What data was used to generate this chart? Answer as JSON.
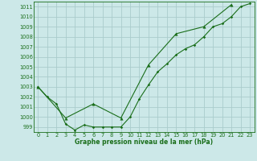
{
  "title": "Graphe pression niveau de la mer (hPa)",
  "bg_color": "#cce8e8",
  "grid_color": "#aacccc",
  "line_color": "#1a6e1a",
  "xlim": [
    -0.5,
    23.5
  ],
  "ylim": [
    998.5,
    1011.5
  ],
  "yticks": [
    999,
    1000,
    1001,
    1002,
    1003,
    1004,
    1005,
    1006,
    1007,
    1008,
    1009,
    1010,
    1011
  ],
  "xticks": [
    0,
    1,
    2,
    3,
    4,
    5,
    6,
    7,
    8,
    9,
    10,
    11,
    12,
    13,
    14,
    15,
    16,
    17,
    18,
    19,
    20,
    21,
    22,
    23
  ],
  "line1_x": [
    0,
    1,
    2,
    3,
    4,
    5,
    6,
    7,
    8,
    9,
    10,
    11,
    12,
    13,
    14,
    15,
    16,
    17,
    18,
    19,
    20,
    21,
    22,
    23
  ],
  "line1_y": [
    1003.0,
    1002.0,
    1001.3,
    999.3,
    998.7,
    999.2,
    999.0,
    999.0,
    999.0,
    999.0,
    1000.0,
    1001.8,
    1003.2,
    1004.5,
    1005.3,
    1006.2,
    1006.8,
    1007.2,
    1008.0,
    1009.0,
    1009.3,
    1010.0,
    1011.0,
    1011.3
  ],
  "line2_x": [
    0,
    3,
    6,
    9,
    12,
    15,
    18,
    21
  ],
  "line2_y": [
    1003.0,
    999.9,
    1001.3,
    999.9,
    1005.2,
    1008.3,
    1009.0,
    1011.2
  ],
  "title_fontsize": 5.5,
  "tick_fontsize": 4.8,
  "marker1_size": 1.8,
  "marker2_size": 3.0,
  "linewidth": 0.8
}
